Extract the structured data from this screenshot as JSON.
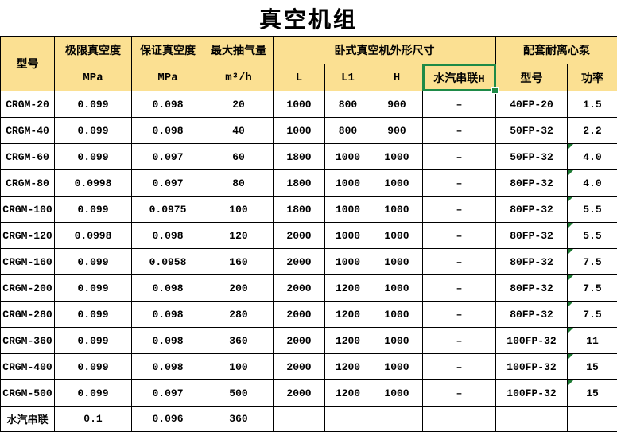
{
  "title": "真空机组",
  "colors": {
    "header_bg": "#FBE092",
    "selection_green": "#1E8A47",
    "error_indicator_green": "#1E7B34"
  },
  "table": {
    "header": {
      "model": "型号",
      "ultimate_vacuum": "极限真空度",
      "guaranteed_vacuum": "保证真空度",
      "max_pumping": "最大抽气量",
      "dims_group": "卧式真空机外形尺寸",
      "pump_group": "配套耐离心泵",
      "unit_mpa_1": "MPa",
      "unit_mpa_2": "MPa",
      "unit_m3h": "m³/h",
      "col_l": "L",
      "col_l1": "L1",
      "col_h": "H",
      "col_steam_series_h": "水汽串联H",
      "pump_model": "型号",
      "pump_power": "功率"
    },
    "selected_header_cell": "水汽串联H",
    "rows": [
      {
        "model": "CRGM-20",
        "ultimate": "0.099",
        "guaranteed": "0.098",
        "max_flow": "20",
        "l": "1000",
        "l1": "800",
        "h": "900",
        "steam_h": "–",
        "pump_model": "40FP-20",
        "power": "1.5",
        "error_indicator": false
      },
      {
        "model": "CRGM-40",
        "ultimate": "0.099",
        "guaranteed": "0.098",
        "max_flow": "40",
        "l": "1000",
        "l1": "800",
        "h": "900",
        "steam_h": "–",
        "pump_model": "50FP-32",
        "power": "2.2",
        "error_indicator": false
      },
      {
        "model": "CRGM-60",
        "ultimate": "0.099",
        "guaranteed": "0.097",
        "max_flow": "60",
        "l": "1800",
        "l1": "1000",
        "h": "1000",
        "steam_h": "–",
        "pump_model": "50FP-32",
        "power": "4.0",
        "error_indicator": true
      },
      {
        "model": "CRGM-80",
        "ultimate": "0.0998",
        "guaranteed": "0.097",
        "max_flow": "80",
        "l": "1800",
        "l1": "1000",
        "h": "1000",
        "steam_h": "–",
        "pump_model": "80FP-32",
        "power": "4.0",
        "error_indicator": true
      },
      {
        "model": "CRGM-100",
        "ultimate": "0.099",
        "guaranteed": "0.0975",
        "max_flow": "100",
        "l": "1800",
        "l1": "1000",
        "h": "1000",
        "steam_h": "–",
        "pump_model": "80FP-32",
        "power": "5.5",
        "error_indicator": true
      },
      {
        "model": "CRGM-120",
        "ultimate": "0.0998",
        "guaranteed": "0.098",
        "max_flow": "120",
        "l": "2000",
        "l1": "1000",
        "h": "1000",
        "steam_h": "–",
        "pump_model": "80FP-32",
        "power": "5.5",
        "error_indicator": true
      },
      {
        "model": "CRGM-160",
        "ultimate": "0.099",
        "guaranteed": "0.0958",
        "max_flow": "160",
        "l": "2000",
        "l1": "1000",
        "h": "1000",
        "steam_h": "–",
        "pump_model": "80FP-32",
        "power": "7.5",
        "error_indicator": true
      },
      {
        "model": "CRGM-200",
        "ultimate": "0.099",
        "guaranteed": "0.098",
        "max_flow": "200",
        "l": "2000",
        "l1": "1200",
        "h": "1000",
        "steam_h": "–",
        "pump_model": "80FP-32",
        "power": "7.5",
        "error_indicator": true
      },
      {
        "model": "CRGM-280",
        "ultimate": "0.099",
        "guaranteed": "0.098",
        "max_flow": "280",
        "l": "2000",
        "l1": "1200",
        "h": "1000",
        "steam_h": "–",
        "pump_model": "80FP-32",
        "power": "7.5",
        "error_indicator": true
      },
      {
        "model": "CRGM-360",
        "ultimate": "0.099",
        "guaranteed": "0.098",
        "max_flow": "360",
        "l": "2000",
        "l1": "1200",
        "h": "1000",
        "steam_h": "–",
        "pump_model": "100FP-32",
        "power": "11",
        "error_indicator": true
      },
      {
        "model": "CRGM-400",
        "ultimate": "0.099",
        "guaranteed": "0.098",
        "max_flow": "100",
        "l": "2000",
        "l1": "1200",
        "h": "1000",
        "steam_h": "–",
        "pump_model": "100FP-32",
        "power": "15",
        "error_indicator": true
      },
      {
        "model": "CRGM-500",
        "ultimate": "0.099",
        "guaranteed": "0.097",
        "max_flow": "500",
        "l": "2000",
        "l1": "1200",
        "h": "1000",
        "steam_h": "–",
        "pump_model": "100FP-32",
        "power": "15",
        "error_indicator": true
      },
      {
        "model": "水汽串联",
        "ultimate": "0.1",
        "guaranteed": "0.096",
        "max_flow": "360",
        "l": "",
        "l1": "",
        "h": "",
        "steam_h": "",
        "pump_model": "",
        "power": "",
        "error_indicator": false
      }
    ]
  }
}
